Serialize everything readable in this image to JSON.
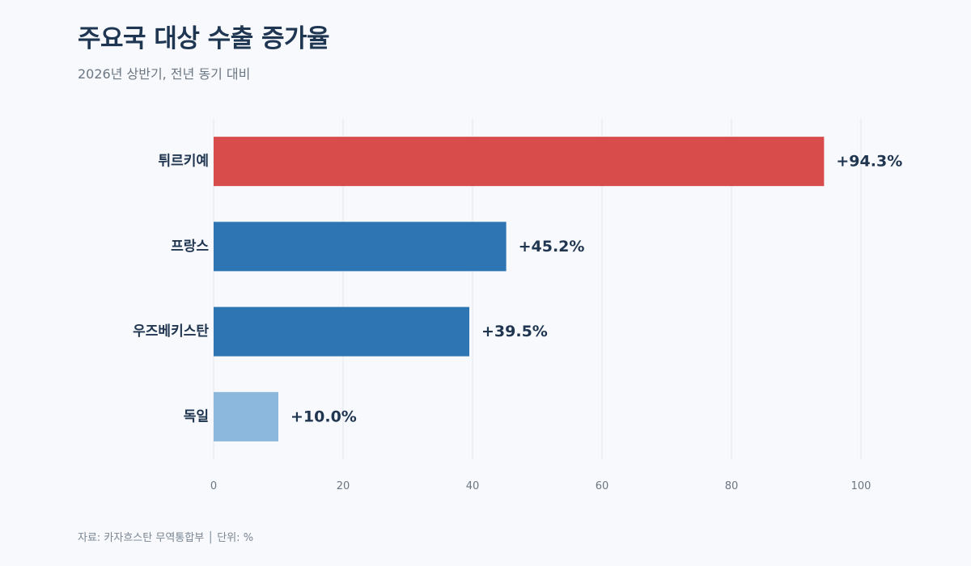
{
  "header": {
    "title": "주요국 대상 수출 증가율",
    "subtitle": "2026년 상반기, 전년 동기 대비"
  },
  "footer": {
    "source": "자료: 카자흐스탄 무역통합부 │ 단위: %"
  },
  "colors": {
    "highlight": "#d94c4c",
    "primary": "#2e75b4",
    "muted": "#8cb8dd",
    "grid": "#e3e7ec"
  },
  "chart_data": {
    "type": "bar",
    "orientation": "horizontal",
    "categories": [
      "튀르키예",
      "프랑스",
      "우즈베키스탄",
      "독일"
    ],
    "values": [
      94.3,
      45.2,
      39.5,
      10.0
    ],
    "value_labels": [
      "+94.3%",
      "+45.2%",
      "+39.5%",
      "+10.0%"
    ],
    "bar_colors": [
      "#d94c4c",
      "#2e75b4",
      "#2e75b4",
      "#8cb8dd"
    ],
    "xlim": [
      0,
      100
    ],
    "xticks": [
      0,
      20,
      40,
      60,
      80,
      100
    ],
    "xlabel": "",
    "ylabel": "",
    "grid": "vertical",
    "legend": "none"
  }
}
